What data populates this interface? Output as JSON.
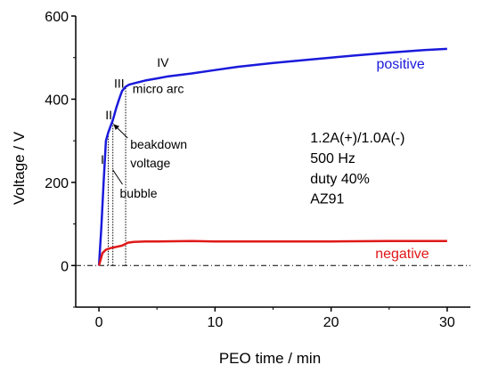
{
  "chart_data": {
    "type": "line",
    "xlabel": "PEO time / min",
    "ylabel": "Voltage / V",
    "xlim": [
      -2,
      32
    ],
    "ylim": [
      -100,
      600
    ],
    "xticks": [
      0,
      10,
      20,
      30
    ],
    "yticks": [
      0,
      200,
      400,
      600
    ],
    "grid": false,
    "colors": {
      "positive": "#1a1adc",
      "negative": "#e01818",
      "axis": "#000000"
    },
    "series": [
      {
        "name": "positive",
        "x": [
          0.0,
          0.2,
          0.4,
          0.6,
          0.8,
          1.0,
          1.2,
          1.5,
          1.8,
          2.0,
          2.3,
          2.6,
          3.0,
          4.0,
          5.0,
          6.0,
          8.0,
          10.0,
          12.0,
          15.0,
          18.0,
          20.0,
          22.0,
          25.0,
          28.0,
          30.0
        ],
        "values": [
          0,
          90,
          200,
          300,
          320,
          335,
          350,
          380,
          405,
          420,
          430,
          435,
          438,
          445,
          450,
          455,
          462,
          470,
          478,
          487,
          495,
          500,
          505,
          512,
          518,
          521
        ]
      },
      {
        "name": "negative",
        "x": [
          0.0,
          0.3,
          0.6,
          1.0,
          1.5,
          2.0,
          2.5,
          3.0,
          4.0,
          5.0,
          8.0,
          10.0,
          15.0,
          20.0,
          25.0,
          30.0
        ],
        "values": [
          0,
          30,
          38,
          42,
          45,
          48,
          55,
          57,
          58,
          58,
          59,
          58,
          58,
          58,
          59,
          59
        ]
      }
    ],
    "zero_line": 0,
    "stage_lines": [
      {
        "x": 0.8,
        "y": 320
      },
      {
        "x": 1.2,
        "y": 345
      },
      {
        "x": 2.3,
        "y": 430
      }
    ],
    "annotations": {
      "stages": [
        {
          "label": "I",
          "x": 0.15,
          "y": 245
        },
        {
          "label": "II",
          "x": 0.55,
          "y": 352
        },
        {
          "label": "III",
          "x": 1.3,
          "y": 428
        },
        {
          "label": "IV",
          "x": 5.0,
          "y": 478
        }
      ],
      "micro_arc": {
        "text": "micro arc",
        "x": 2.9,
        "y": 415
      },
      "breakdown": {
        "line1": "beakdown",
        "line2": "voltage",
        "x": 2.7,
        "y1": 281,
        "y2": 236,
        "arrow_to": {
          "x": 1.1,
          "y": 340
        }
      },
      "bubble": {
        "text": "bubble",
        "x": 1.8,
        "y": 163
      },
      "positive_label": {
        "text": "positive",
        "x": 23.9,
        "y": 474
      },
      "negative_label": {
        "text": "negative",
        "x": 23.8,
        "y": 18
      },
      "info_lines": [
        {
          "text": "1.2A(+)/1.0A(-)",
          "x": 18.2,
          "y": 296
        },
        {
          "text": "500 Hz",
          "x": 18.2,
          "y": 247
        },
        {
          "text": "duty 40%",
          "x": 18.2,
          "y": 198
        },
        {
          "text": "AZ91",
          "x": 18.2,
          "y": 149
        }
      ]
    }
  }
}
